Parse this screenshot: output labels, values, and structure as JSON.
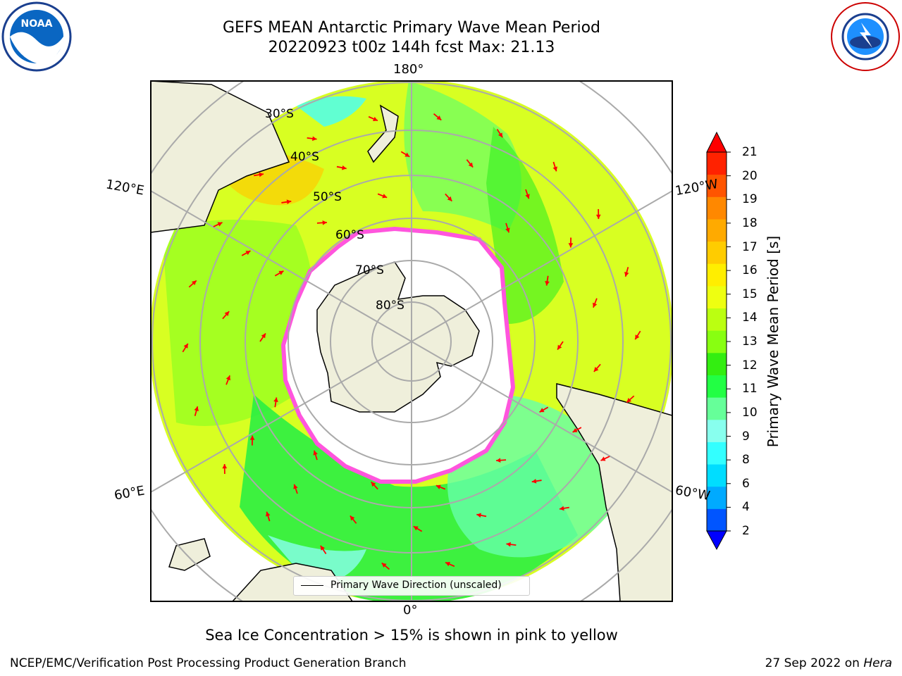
{
  "title": {
    "line1": "GEFS MEAN Antarctic Primary Wave Mean Period",
    "line2": "20220923 t00z 144h fcst   Max: 21.13"
  },
  "logos": {
    "left": "NOAA",
    "right": "NATIONAL WEATHER SERVICE"
  },
  "map": {
    "projection": "south-polar-stereographic",
    "lon_labels": {
      "top": "180°",
      "bottom": "0°",
      "upper_left": "120°E",
      "lower_left": "60°E",
      "upper_right": "120°W",
      "lower_right": "60°W"
    },
    "lat_labels": [
      "30°S",
      "40°S",
      "50°S",
      "60°S",
      "70°S",
      "80°S"
    ],
    "field": "Primary Wave Mean Period",
    "max_value": 21.13,
    "arrow_color": "#ff0000",
    "land_color": "#efefdb",
    "sea_ice_colors": [
      "#ff66cc",
      "#ff9933",
      "#ffcc00"
    ]
  },
  "legend": {
    "label": "Primary Wave Direction (unscaled)"
  },
  "colorbar": {
    "label": "Primary Wave Mean Period [s]",
    "ticks": [
      "2",
      "4",
      "6",
      "8",
      "9",
      "10",
      "11",
      "12",
      "13",
      "14",
      "15",
      "16",
      "17",
      "18",
      "19",
      "20",
      "21"
    ],
    "colors": [
      "#0055ff",
      "#00aaff",
      "#00ddff",
      "#33ffff",
      "#88ffee",
      "#66ff99",
      "#22ff44",
      "#33ee11",
      "#88ff11",
      "#bbff11",
      "#eeff11",
      "#ffee00",
      "#ffcc00",
      "#ffaa00",
      "#ff8800",
      "#ff5500",
      "#ff2200"
    ],
    "under_color": "#0000ff",
    "over_color": "#ff0000"
  },
  "note": "Sea Ice Concentration > 15% is shown in pink to yellow",
  "footer": {
    "left": "NCEP/EMC/Verification Post Processing Product Generation Branch",
    "right_date": "27 Sep 2022 on ",
    "right_machine": "Hera"
  }
}
